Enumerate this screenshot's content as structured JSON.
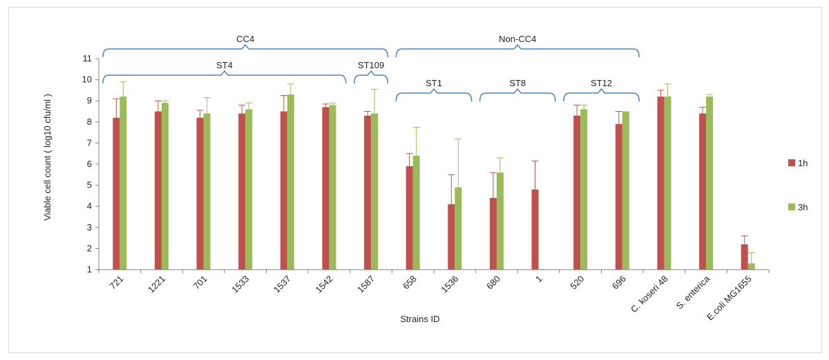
{
  "chart_data": {
    "type": "bar",
    "title": "",
    "xlabel": "Strains ID",
    "ylabel": "Viable cell count ( log10 cfu/ml )",
    "ylim": [
      1,
      11
    ],
    "yticks": [
      1,
      2,
      3,
      4,
      5,
      6,
      7,
      8,
      9,
      10,
      11
    ],
    "grid": false,
    "legend_position": "right",
    "categories": [
      "721",
      "1221",
      "701",
      "1533",
      "1537",
      "1542",
      "1587",
      "658",
      "1536",
      "680",
      "1",
      "520",
      "696",
      "C. koseri 48",
      "S. enterica",
      "E.coli MG1655"
    ],
    "series": [
      {
        "name": "1h",
        "color": "#c0504d",
        "values": [
          8.2,
          8.5,
          8.2,
          8.4,
          8.5,
          8.7,
          8.3,
          5.9,
          4.1,
          4.4,
          4.8,
          8.3,
          7.9,
          9.2,
          8.4,
          2.2
        ],
        "error": [
          0.9,
          0.5,
          0.35,
          0.4,
          0.75,
          0.15,
          0.2,
          0.6,
          1.4,
          1.2,
          1.35,
          0.5,
          0.6,
          0.3,
          0.3,
          0.4
        ]
      },
      {
        "name": "3h",
        "color": "#9bbb59",
        "values": [
          9.2,
          8.9,
          8.4,
          8.6,
          9.3,
          8.8,
          8.4,
          6.4,
          4.9,
          5.6,
          1.0,
          8.6,
          8.5,
          9.2,
          9.2,
          1.3
        ],
        "error": [
          0.7,
          0.1,
          0.75,
          0.3,
          0.5,
          0.1,
          1.15,
          1.35,
          2.3,
          0.7,
          0.0,
          0.2,
          0.0,
          0.6,
          0.1,
          0.5
        ]
      }
    ],
    "annotations": [
      {
        "label": "CC4",
        "from": "721",
        "to": "1587",
        "level": 1
      },
      {
        "label": "Non-CC4",
        "from": "658",
        "to": "696",
        "level": 1
      },
      {
        "label": "ST4",
        "from": "721",
        "to": "1542",
        "level": 2
      },
      {
        "label": "ST109",
        "from": "1587",
        "to": "1587",
        "level": 2
      },
      {
        "label": "ST1",
        "from": "658",
        "to": "1536",
        "level": 3
      },
      {
        "label": "ST8",
        "from": "680",
        "to": "1",
        "level": 3
      },
      {
        "label": "ST12",
        "from": "520",
        "to": "696",
        "level": 3
      }
    ]
  }
}
